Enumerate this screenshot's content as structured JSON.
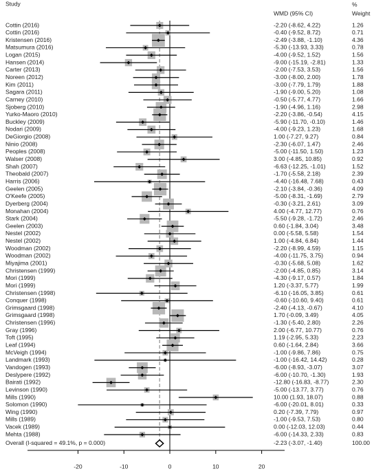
{
  "chart_data": {
    "type": "forest",
    "header": {
      "study": "Study",
      "effect": "WMD (95% CI)",
      "weight_top": "%",
      "weight": "Weight"
    },
    "xlim": [
      -28,
      25
    ],
    "xticks": [
      -20,
      -10,
      0,
      10,
      20
    ],
    "rows": [
      {
        "study": "Cottin  (2016)",
        "wmd": -2.2,
        "ci_low": -8.62,
        "ci_high": 4.22,
        "ci_label": "-2.20 (-8.62, 4.22)",
        "weight": 1.26
      },
      {
        "study": "Cottin  (2016)",
        "wmd": -0.4,
        "ci_low": -9.52,
        "ci_high": 8.72,
        "ci_label": "-0.40 (-9.52, 8.72)",
        "weight": 0.71
      },
      {
        "study": "Kristensen (2016)",
        "wmd": -2.49,
        "ci_low": -3.88,
        "ci_high": -1.1,
        "ci_label": "-2.49 (-3.88, -1.10)",
        "weight": 4.36
      },
      {
        "study": "Matsumura (2016)",
        "wmd": -5.3,
        "ci_low": -13.93,
        "ci_high": 3.33,
        "ci_label": "-5.30 (-13.93, 3.33)",
        "weight": 0.78
      },
      {
        "study": "Logan (2015)",
        "wmd": -4.0,
        "ci_low": -9.52,
        "ci_high": 1.52,
        "ci_label": "-4.00 (-9.52, 1.52)",
        "weight": 1.56
      },
      {
        "study": "Hansen (2014)",
        "wmd": -9.0,
        "ci_low": -15.19,
        "ci_high": -2.81,
        "ci_label": "-9.00 (-15.19, -2.81)",
        "weight": 1.33
      },
      {
        "study": "Carter (2013)",
        "wmd": -2.0,
        "ci_low": -7.53,
        "ci_high": 3.53,
        "ci_label": "-2.00 (-7.53, 3.53)",
        "weight": 1.56
      },
      {
        "study": "Noreen (2012)",
        "wmd": -3.0,
        "ci_low": -8.0,
        "ci_high": 2.0,
        "ci_label": "-3.00 (-8.00, 2.00)",
        "weight": 1.78
      },
      {
        "study": "Kim (2011)",
        "wmd": -3.0,
        "ci_low": -7.79,
        "ci_high": 1.79,
        "ci_label": "-3.00 (-7.79, 1.79)",
        "weight": 1.88
      },
      {
        "study": "Sagara (2011)",
        "wmd": -1.9,
        "ci_low": -9.0,
        "ci_high": 5.2,
        "ci_label": "-1.90 (-9.00, 5.20)",
        "weight": 1.08
      },
      {
        "study": "Carney (2010)",
        "wmd": -0.5,
        "ci_low": -5.77,
        "ci_high": 4.77,
        "ci_label": "-0.50 (-5.77, 4.77)",
        "weight": 1.66
      },
      {
        "study": "Sjoberg (2010)",
        "wmd": -1.9,
        "ci_low": -4.96,
        "ci_high": 1.16,
        "ci_label": "-1.90 (-4.96, 1.16)",
        "weight": 2.98
      },
      {
        "study": "Yurko-Maoro  (2010)",
        "wmd": -2.2,
        "ci_low": -3.86,
        "ci_high": -0.54,
        "ci_label": "-2.20 (-3.86, -0.54)",
        "weight": 4.15
      },
      {
        "study": "Buckley (2009)",
        "wmd": -5.9,
        "ci_low": -11.7,
        "ci_high": -0.1,
        "ci_label": "-5.90 (-11.70, -0.10)",
        "weight": 1.46
      },
      {
        "study": "Nodari  (2009)",
        "wmd": -4.0,
        "ci_low": -9.23,
        "ci_high": 1.23,
        "ci_label": "-4.00 (-9.23, 1.23)",
        "weight": 1.68
      },
      {
        "study": "DeGiorgio (2008)",
        "wmd": 1.0,
        "ci_low": -7.27,
        "ci_high": 9.27,
        "ci_label": "1.00 (-7.27, 9.27)",
        "weight": 0.84
      },
      {
        "study": "Ninio (2008)",
        "wmd": -2.3,
        "ci_low": -6.07,
        "ci_high": 1.47,
        "ci_label": "-2.30 (-6.07, 1.47)",
        "weight": 2.46
      },
      {
        "study": "Peoples (2008)",
        "wmd": -5.0,
        "ci_low": -11.5,
        "ci_high": 1.5,
        "ci_label": "-5.00 (-11.50, 1.50)",
        "weight": 1.23
      },
      {
        "study": "Walser (2008)",
        "wmd": 3.0,
        "ci_low": -4.85,
        "ci_high": 10.85,
        "ci_label": "3.00 (-4.85, 10.85)",
        "weight": 0.92
      },
      {
        "study": "Shah (2007)",
        "wmd": -6.63,
        "ci_low": -12.25,
        "ci_high": -1.01,
        "ci_label": "-6.63 (-12.25, -1.01)",
        "weight": 1.52
      },
      {
        "study": "Theobald (2007)",
        "wmd": -1.7,
        "ci_low": -5.58,
        "ci_high": 2.18,
        "ci_label": "-1.70 (-5.58, 2.18)",
        "weight": 2.39
      },
      {
        "study": "Harris  (2006)",
        "wmd": -4.4,
        "ci_low": -16.48,
        "ci_high": 7.68,
        "ci_label": "-4.40 (-16.48, 7.68)",
        "weight": 0.43
      },
      {
        "study": "Geelen (2005)",
        "wmd": -2.1,
        "ci_low": -3.84,
        "ci_high": -0.36,
        "ci_label": "-2.10 (-3.84, -0.36)",
        "weight": 4.09
      },
      {
        "study": "O'Keefe (2005)",
        "wmd": -5.0,
        "ci_low": -8.31,
        "ci_high": -1.69,
        "ci_label": "-5.00 (-8.31, -1.69)",
        "weight": 2.79
      },
      {
        "study": "Dyerberg (2004)",
        "wmd": -0.3,
        "ci_low": -3.21,
        "ci_high": 2.61,
        "ci_label": "-0.30 (-3.21, 2.61)",
        "weight": 3.09
      },
      {
        "study": "Monahan (2004)",
        "wmd": 4.0,
        "ci_low": -4.77,
        "ci_high": 12.77,
        "ci_label": "4.00 (-4.77, 12.77)",
        "weight": 0.76
      },
      {
        "study": "Stark  (2004)",
        "wmd": -5.5,
        "ci_low": -9.28,
        "ci_high": -1.72,
        "ci_label": "-5.50 (-9.28, -1.72)",
        "weight": 2.46
      },
      {
        "study": "Geelen (2003)",
        "wmd": 0.6,
        "ci_low": -1.84,
        "ci_high": 3.04,
        "ci_label": "0.60 (-1.84, 3.04)",
        "weight": 3.48
      },
      {
        "study": "Nestel  (2002)",
        "wmd": 0.0,
        "ci_low": -5.58,
        "ci_high": 5.58,
        "ci_label": "0.00 (-5.58, 5.58)",
        "weight": 1.54
      },
      {
        "study": "Nestel  (2002)",
        "wmd": 1.0,
        "ci_low": -4.84,
        "ci_high": 6.84,
        "ci_label": "1.00 (-4.84, 6.84)",
        "weight": 1.44
      },
      {
        "study": "Woodman  (2002)",
        "wmd": -2.2,
        "ci_low": -8.99,
        "ci_high": 4.59,
        "ci_label": "-2.20 (-8.99, 4.59)",
        "weight": 1.15
      },
      {
        "study": "Woodman  (2002)",
        "wmd": -4.0,
        "ci_low": -11.75,
        "ci_high": 3.75,
        "ci_label": "-4.00 (-11.75, 3.75)",
        "weight": 0.94
      },
      {
        "study": "Miyajima  (2001)",
        "wmd": -0.3,
        "ci_low": -5.68,
        "ci_high": 5.08,
        "ci_label": "-0.30 (-5.68, 5.08)",
        "weight": 1.62
      },
      {
        "study": "Christensen (1999)",
        "wmd": -2.0,
        "ci_low": -4.85,
        "ci_high": 0.85,
        "ci_label": "-2.00 (-4.85, 0.85)",
        "weight": 3.14
      },
      {
        "study": "Mori  (1999)",
        "wmd": -4.3,
        "ci_low": -9.17,
        "ci_high": 0.57,
        "ci_label": "-4.30 (-9.17, 0.57)",
        "weight": 1.84
      },
      {
        "study": "Mori  (1999)",
        "wmd": 1.2,
        "ci_low": -3.37,
        "ci_high": 5.77,
        "ci_label": "1.20 (-3.37, 5.77)",
        "weight": 1.99
      },
      {
        "study": "Christensen (1998)",
        "wmd": -6.1,
        "ci_low": -16.05,
        "ci_high": 3.85,
        "ci_label": "-6.10 (-16.05, 3.85)",
        "weight": 0.61
      },
      {
        "study": "Conquer (1998)",
        "wmd": -0.6,
        "ci_low": -10.6,
        "ci_high": 9.4,
        "ci_label": "-0.60 (-10.60, 9.40)",
        "weight": 0.61
      },
      {
        "study": "Grimsgaard (1998)",
        "wmd": -2.4,
        "ci_low": -4.13,
        "ci_high": -0.67,
        "ci_label": "-2.40 (-4.13, -0.67)",
        "weight": {
          "value": 4.1,
          "label": "4.10"
        }
      },
      {
        "study": "Grimsgaard (1998)",
        "wmd": 1.7,
        "ci_low": -0.09,
        "ci_high": 3.49,
        "ci_label": "1.70 (-0.09, 3.49)",
        "weight": 4.05
      },
      {
        "study": "Christensen (1996)",
        "wmd": -1.3,
        "ci_low": -5.4,
        "ci_high": 2.8,
        "ci_label": "-1.30 (-5.40, 2.80)",
        "weight": 2.26
      },
      {
        "study": "Gray (1996)",
        "wmd": 2.0,
        "ci_low": -6.77,
        "ci_high": 10.77,
        "ci_label": "2.00 (-6.77, 10.77)",
        "weight": 0.76
      },
      {
        "study": "Toft (1995)",
        "wmd": 1.19,
        "ci_low": -2.95,
        "ci_high": 5.33,
        "ci_label": "1.19 (-2.95, 5.33)",
        "weight": 2.23
      },
      {
        "study": "Leaf (1994)",
        "wmd": 0.6,
        "ci_low": -1.64,
        "ci_high": 2.84,
        "ci_label": "0.60 (-1.64, 2.84)",
        "weight": 3.66
      },
      {
        "study": "McVeigh (1994)",
        "wmd": -1.0,
        "ci_low": -9.86,
        "ci_high": 7.86,
        "ci_label": "-1.00 (-9.86, 7.86)",
        "weight": 0.75
      },
      {
        "study": "Landmark (1993)",
        "wmd": -1.0,
        "ci_low": -16.42,
        "ci_high": 14.42,
        "ci_label": "-1.00 (-16.42, 14.42)",
        "weight": 0.28
      },
      {
        "study": "Vandogen (1993)",
        "wmd": -6.0,
        "ci_low": -8.93,
        "ci_high": -3.07,
        "ci_label": "-6.00 (-8.93, -3.07)",
        "weight": 3.07
      },
      {
        "study": "Deslypere (1992)",
        "wmd": -6.0,
        "ci_low": -10.7,
        "ci_high": -1.3,
        "ci_label": "-6.00 (-10.70, -1.30)",
        "weight": 1.93
      },
      {
        "study": "Bairati (1992)",
        "wmd": -12.8,
        "ci_low": -16.83,
        "ci_high": -8.77,
        "ci_label": "-12.80 (-16.83, -8.77)",
        "weight": {
          "value": 2.3,
          "label": "2.30"
        }
      },
      {
        "study": "Levinson (1990)",
        "wmd": -5.0,
        "ci_low": -13.77,
        "ci_high": 3.77,
        "ci_label": "-5.00 (-13.77, 3.77)",
        "weight": 0.76
      },
      {
        "study": "Mills  (1990)",
        "wmd": 10.0,
        "ci_low": 1.93,
        "ci_high": 18.07,
        "ci_label": "10.00 (1.93, 18.07)",
        "weight": 0.88
      },
      {
        "study": "Solomon (1990)",
        "wmd": -6.0,
        "ci_low": -20.01,
        "ci_high": 8.01,
        "ci_label": "-6.00 (-20.01, 8.01)",
        "weight": 0.33
      },
      {
        "study": "Wing  (1990)",
        "wmd": 0.2,
        "ci_low": -7.39,
        "ci_high": 7.79,
        "ci_label": "0.20 (-7.39, 7.79)",
        "weight": 0.97
      },
      {
        "study": "Mills  (1989)",
        "wmd": -1.0,
        "ci_low": -9.53,
        "ci_high": 7.53,
        "ci_label": "-1.00 (-9.53, 7.53)",
        "weight": {
          "value": 0.8,
          "label": "0.80"
        }
      },
      {
        "study": "Vacek  (1989)",
        "wmd": 0.0,
        "ci_low": -12.03,
        "ci_high": 12.03,
        "ci_label": "0.00 (-12.03, 12.03)",
        "weight": 0.44
      },
      {
        "study": "Mehta (1988)",
        "wmd": -6.0,
        "ci_low": -14.33,
        "ci_high": 2.33,
        "ci_label": "-6.00 (-14.33, 2.33)",
        "weight": 0.83
      }
    ],
    "overall": {
      "study": "Overall  (I-squared = 49.1%, p = 0.000)",
      "wmd": -2.23,
      "ci_low": -3.07,
      "ci_high": -1.4,
      "ci_label": "-2.23 (-3.07, -1.40)",
      "weight": {
        "value": 100,
        "label": "100.00"
      }
    }
  }
}
